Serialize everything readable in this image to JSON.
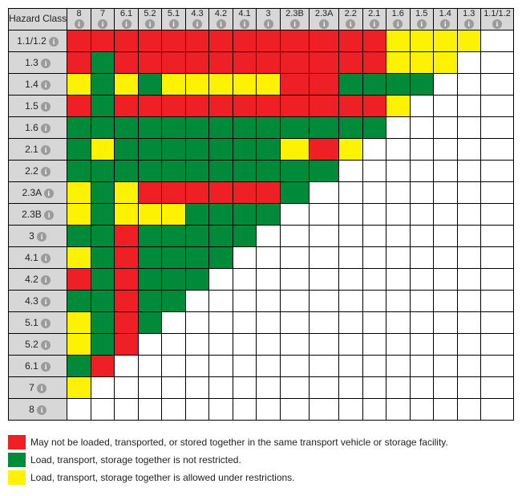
{
  "title": "Hazard Class",
  "columns": [
    "8",
    "7",
    "6.1",
    "5.2",
    "5.1",
    "4.3",
    "4.2",
    "4.1",
    "3",
    "2.3B",
    "2.3A",
    "2.2",
    "2.1",
    "1.6",
    "1.5",
    "1.4",
    "1.3",
    "1.1/1.2"
  ],
  "rows": [
    "1.1/1.2",
    "1.3",
    "1.4",
    "1.5",
    "1.6",
    "2.1",
    "2.2",
    "2.3A",
    "2.3B",
    "3",
    "4.1",
    "4.2",
    "4.3",
    "5.1",
    "5.2",
    "6.1",
    "7",
    "8"
  ],
  "colors": {
    "R": "#ee1f25",
    "G": "#008a3a",
    "Y": "#fdf104",
    "header_bg": "#d7d7d7",
    "border": "#000000",
    "info_bg": "#9b9b9b",
    "info_fg": "#ffffff"
  },
  "cell_size": {
    "w": 31,
    "h": 27
  },
  "info_glyph": "i",
  "grid": [
    [
      "R",
      "R",
      "R",
      "R",
      "R",
      "R",
      "R",
      "R",
      "R",
      "R",
      "R",
      "R",
      "R",
      "Y",
      "Y",
      "Y",
      "Y",
      ""
    ],
    [
      "R",
      "G",
      "R",
      "R",
      "R",
      "R",
      "R",
      "R",
      "R",
      "R",
      "R",
      "R",
      "R",
      "Y",
      "Y",
      "Y",
      "",
      ""
    ],
    [
      "Y",
      "G",
      "Y",
      "G",
      "Y",
      "Y",
      "Y",
      "Y",
      "Y",
      "R",
      "R",
      "G",
      "G",
      "G",
      "G",
      "",
      "",
      ""
    ],
    [
      "R",
      "G",
      "R",
      "R",
      "R",
      "R",
      "R",
      "R",
      "R",
      "R",
      "R",
      "R",
      "R",
      "Y",
      "",
      "",
      "",
      ""
    ],
    [
      "G",
      "G",
      "G",
      "G",
      "G",
      "G",
      "G",
      "G",
      "G",
      "G",
      "G",
      "G",
      "G",
      "",
      "",
      "",
      "",
      ""
    ],
    [
      "G",
      "Y",
      "G",
      "G",
      "G",
      "G",
      "G",
      "G",
      "G",
      "Y",
      "R",
      "Y",
      "",
      "",
      "",
      "",
      "",
      ""
    ],
    [
      "G",
      "G",
      "G",
      "G",
      "G",
      "G",
      "G",
      "G",
      "G",
      "G",
      "G",
      "",
      "",
      "",
      "",
      "",
      "",
      ""
    ],
    [
      "Y",
      "G",
      "Y",
      "R",
      "R",
      "R",
      "R",
      "R",
      "R",
      "G",
      "",
      "",
      "",
      "",
      "",
      "",
      "",
      ""
    ],
    [
      "Y",
      "G",
      "Y",
      "Y",
      "Y",
      "G",
      "G",
      "G",
      "G",
      "",
      "",
      "",
      "",
      "",
      "",
      "",
      "",
      ""
    ],
    [
      "G",
      "G",
      "R",
      "G",
      "G",
      "G",
      "G",
      "G",
      "",
      "",
      "",
      "",
      "",
      "",
      "",
      "",
      "",
      ""
    ],
    [
      "Y",
      "G",
      "R",
      "G",
      "G",
      "G",
      "G",
      "",
      "",
      "",
      "",
      "",
      "",
      "",
      "",
      "",
      "",
      ""
    ],
    [
      "R",
      "G",
      "R",
      "G",
      "G",
      "G",
      "",
      "",
      "",
      "",
      "",
      "",
      "",
      "",
      "",
      "",
      "",
      ""
    ],
    [
      "G",
      "G",
      "R",
      "G",
      "G",
      "",
      "",
      "",
      "",
      "",
      "",
      "",
      "",
      "",
      "",
      "",
      "",
      ""
    ],
    [
      "Y",
      "G",
      "R",
      "G",
      "",
      "",
      "",
      "",
      "",
      "",
      "",
      "",
      "",
      "",
      "",
      "",
      "",
      ""
    ],
    [
      "Y",
      "G",
      "R",
      "",
      "",
      "",
      "",
      "",
      "",
      "",
      "",
      "",
      "",
      "",
      "",
      "",
      "",
      ""
    ],
    [
      "G",
      "R",
      "",
      "",
      "",
      "",
      "",
      "",
      "",
      "",
      "",
      "",
      "",
      "",
      "",
      "",
      "",
      ""
    ],
    [
      "Y",
      "",
      "",
      "",
      "",
      "",
      "",
      "",
      "",
      "",
      "",
      "",
      "",
      "",
      "",
      "",
      "",
      ""
    ],
    [
      "",
      "",
      "",
      "",
      "",
      "",
      "",
      "",
      "",
      "",
      "",
      "",
      "",
      "",
      "",
      "",
      "",
      ""
    ]
  ],
  "col_widths": [
    "29",
    "29",
    "29",
    "29",
    "29",
    "29",
    "29",
    "29",
    "29",
    "36",
    "36",
    "29",
    "29",
    "29",
    "29",
    "29",
    "29",
    "40"
  ],
  "legend": [
    {
      "code": "R",
      "text": "May not be loaded, transported, or stored together in the same transport vehicle or storage facility."
    },
    {
      "code": "G",
      "text": "Load, transport, storage together is not restricted."
    },
    {
      "code": "Y",
      "text": "Load, transport, storage together is allowed under restrictions."
    }
  ]
}
